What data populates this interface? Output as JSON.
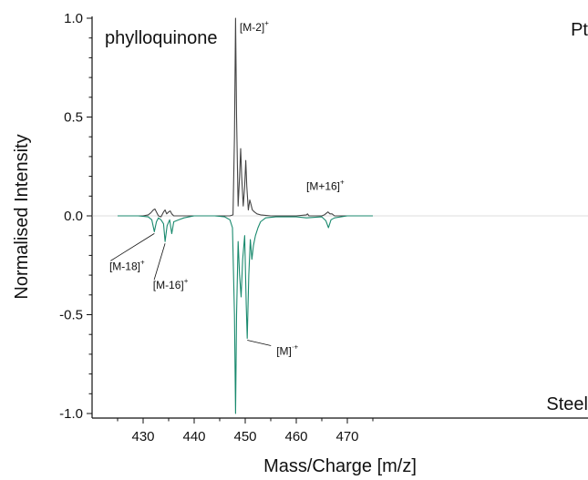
{
  "chart_data": {
    "type": "line",
    "title": "",
    "xlabel": "Mass/Charge [m/z]",
    "ylabel": "Normalised Intensity",
    "xlim": [
      425,
      475
    ],
    "ylim": [
      -1.02,
      1.02
    ],
    "x_ticks": [
      430,
      440,
      450,
      460,
      470
    ],
    "y_ticks": [
      -1.0,
      -0.5,
      0.0,
      0.5,
      1.0
    ],
    "y_tick_labels": [
      "-1.0",
      "-0.5",
      "0.0",
      "0.5",
      "1.0"
    ],
    "grid": false,
    "labels": {
      "compound": "phylloquinone",
      "top_surface": "Pt",
      "bottom_surface": "Steel"
    },
    "series": [
      {
        "color": "#444444",
        "x": [
          425,
          430,
          431,
          431.5,
          432,
          432.3,
          432.6,
          433,
          433.5,
          434,
          434.3,
          434.6,
          435,
          435.3,
          435.6,
          436,
          437,
          440,
          445,
          447,
          447.6,
          447.9,
          448.1,
          448.3,
          448.6,
          448.9,
          449.1,
          449.3,
          449.6,
          449.9,
          450.1,
          450.3,
          450.6,
          450.9,
          451.1,
          451.4,
          451.8,
          452.3,
          453,
          455,
          460,
          462,
          462.2,
          462.5,
          465,
          465.5,
          466.2,
          466.6,
          467,
          467.5,
          470,
          475
        ],
        "y": [
          0,
          0,
          0.005,
          0.015,
          0.03,
          0.035,
          0.02,
          0,
          -0.005,
          0.02,
          0.03,
          0.01,
          0.02,
          0.025,
          0.01,
          0,
          0,
          0,
          0,
          0,
          0.005,
          0.4,
          1.0,
          0.5,
          0.05,
          0.2,
          0.34,
          0.2,
          0.05,
          0.15,
          0.28,
          0.15,
          0.03,
          0.08,
          0.06,
          0.03,
          0.02,
          0.01,
          0.005,
          0,
          0,
          0.005,
          0.01,
          0,
          0,
          0.005,
          0.02,
          0.01,
          0.01,
          0,
          0,
          0
        ]
      },
      {
        "color": "#1a8a6e",
        "x": [
          425,
          429,
          431,
          431.7,
          432.2,
          432.6,
          433,
          433.5,
          434,
          434.3,
          434.7,
          435.2,
          435.6,
          436,
          437,
          438,
          440,
          444,
          446,
          447,
          447.5,
          447.9,
          448.1,
          448.3,
          448.6,
          448.9,
          449.2,
          449.5,
          449.9,
          450.2,
          450.4,
          450.7,
          451,
          451.3,
          451.6,
          452,
          452.5,
          453,
          454,
          456,
          460,
          462,
          465,
          465.8,
          466.3,
          466.8,
          467.5,
          470,
          475
        ],
        "y": [
          0,
          0,
          -0.005,
          -0.02,
          -0.08,
          -0.03,
          -0.01,
          -0.02,
          -0.04,
          -0.13,
          -0.05,
          -0.02,
          -0.09,
          -0.03,
          -0.02,
          -0.01,
          0,
          0,
          -0.005,
          -0.02,
          -0.06,
          -0.5,
          -1.0,
          -0.5,
          -0.13,
          -0.3,
          -0.41,
          -0.22,
          -0.1,
          -0.45,
          -0.62,
          -0.3,
          -0.12,
          -0.22,
          -0.15,
          -0.1,
          -0.06,
          -0.03,
          -0.01,
          -0.005,
          -0.005,
          -0.01,
          -0.005,
          -0.025,
          -0.06,
          -0.02,
          -0.01,
          0,
          0
        ]
      }
    ],
    "annotations": [
      {
        "base": "[M-2]",
        "sup": "+",
        "x": 448.2,
        "y": 1.0
      },
      {
        "base": "[M+16]",
        "sup": "+",
        "x": 466.4,
        "y": 0.03
      },
      {
        "base": "[M-18]",
        "sup": "+",
        "x": 432.2,
        "y": -0.08
      },
      {
        "base": "[M-16]",
        "sup": "+",
        "x": 434.3,
        "y": -0.13
      },
      {
        "base": "[M]",
        "sup": "·+",
        "x": 450.4,
        "y": -0.62
      }
    ]
  }
}
